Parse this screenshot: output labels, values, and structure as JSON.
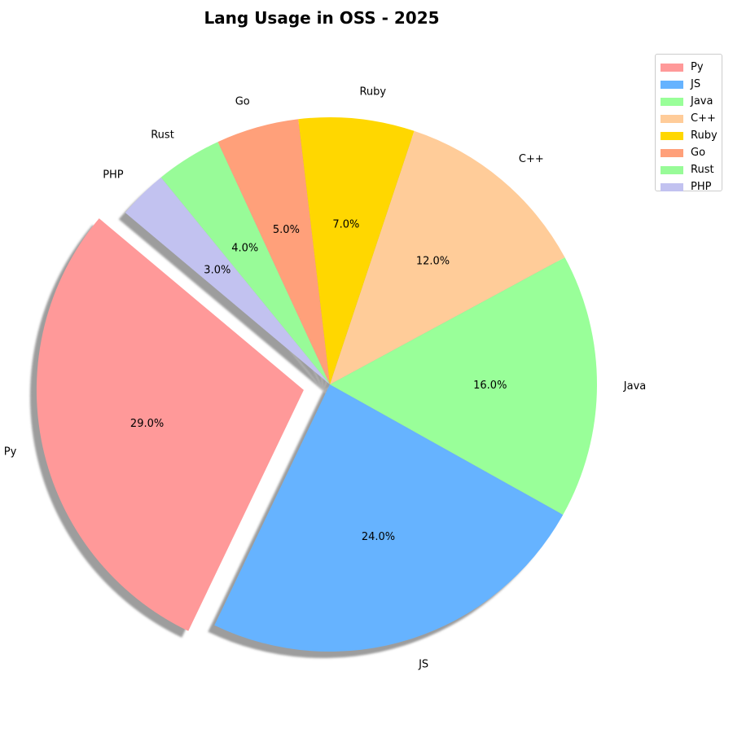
{
  "chart_data": {
    "type": "pie",
    "title": "Lang Usage in OSS - 2025",
    "categories": [
      "Py",
      "JS",
      "Java",
      "C++",
      "Ruby",
      "Go",
      "Rust",
      "PHP"
    ],
    "values": [
      29.0,
      24.0,
      16.0,
      12.0,
      7.0,
      5.0,
      4.0,
      3.0
    ],
    "pct_labels": [
      "29.0%",
      "24.0%",
      "16.0%",
      "12.0%",
      "7.0%",
      "5.0%",
      "4.0%",
      "3.0%"
    ],
    "colors": [
      "#ff9999",
      "#66b3ff",
      "#99ff99",
      "#ffcc99",
      "#ffd700",
      "#ffa07a",
      "#98fb98",
      "#c2c2f0"
    ],
    "exploded": [
      "Py"
    ],
    "start_angle_deg": 140,
    "direction": "counterclockwise",
    "shadow": true,
    "legend": {
      "placement": "top-right"
    }
  }
}
